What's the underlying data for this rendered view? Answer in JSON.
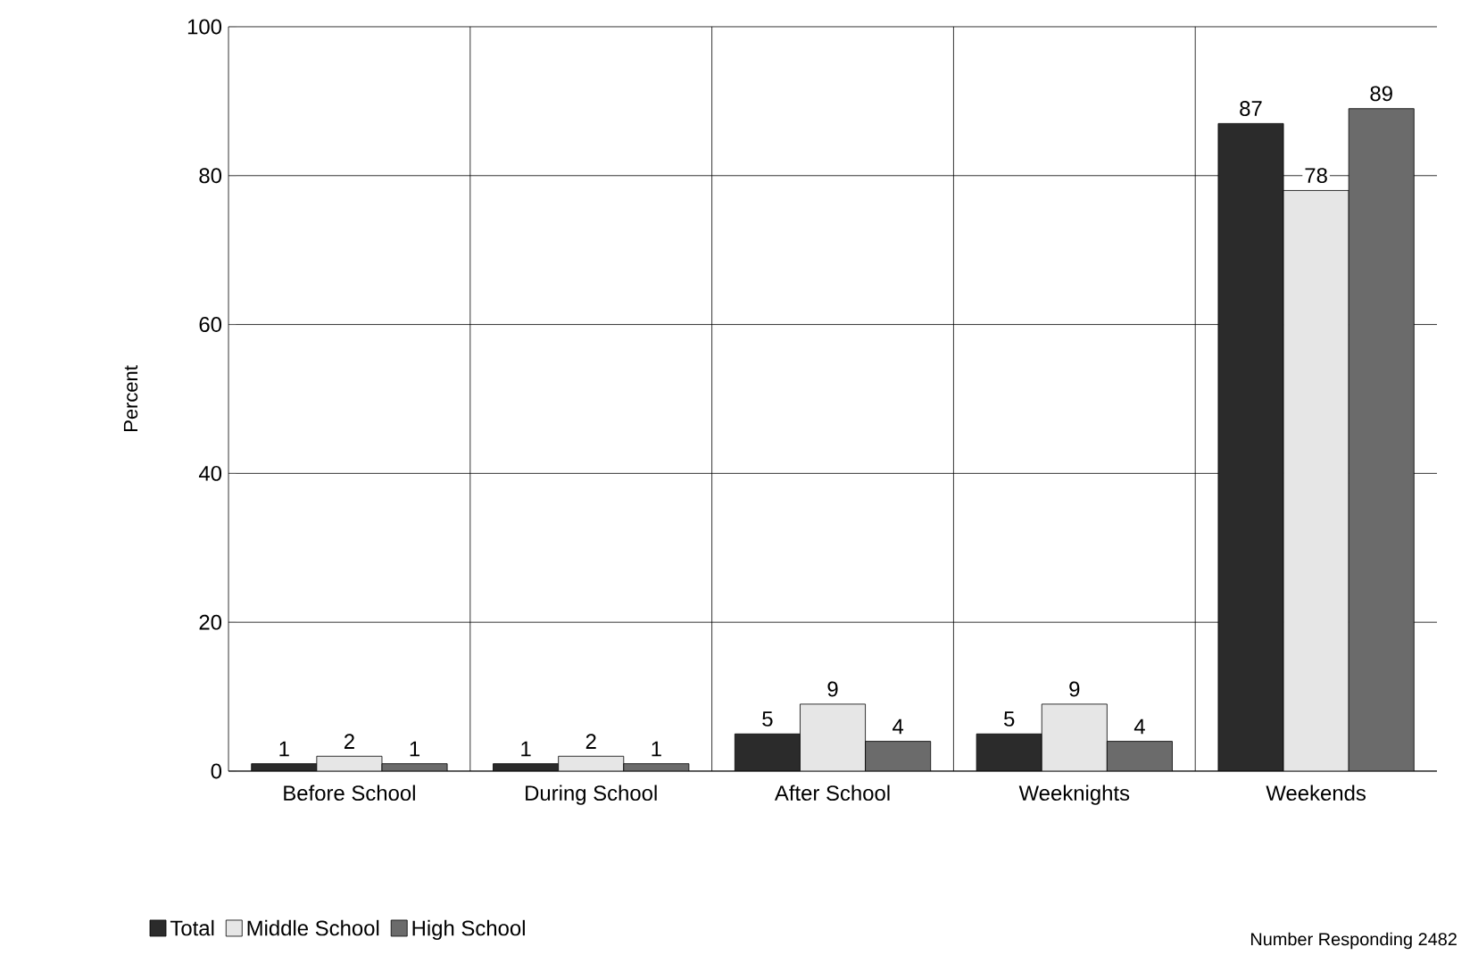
{
  "chart_data": {
    "type": "bar",
    "ylabel": "Percent",
    "categories": [
      "Before School",
      "During School",
      "After School",
      "Weeknights",
      "Weekends"
    ],
    "series": [
      {
        "name": "Total",
        "color": "#2b2b2b",
        "values": [
          1,
          1,
          5,
          5,
          87
        ]
      },
      {
        "name": "Middle School",
        "color": "#e6e6e6",
        "values": [
          2,
          2,
          9,
          9,
          78
        ]
      },
      {
        "name": "High School",
        "color": "#6b6b6b",
        "values": [
          1,
          1,
          4,
          4,
          89
        ]
      }
    ],
    "ylim": [
      0,
      100
    ],
    "yticks": [
      0,
      20,
      40,
      60,
      80,
      100
    ],
    "grid": true,
    "legend": "bottom left",
    "data_labels": true,
    "annotations": [
      "Number Responding  2482"
    ]
  }
}
